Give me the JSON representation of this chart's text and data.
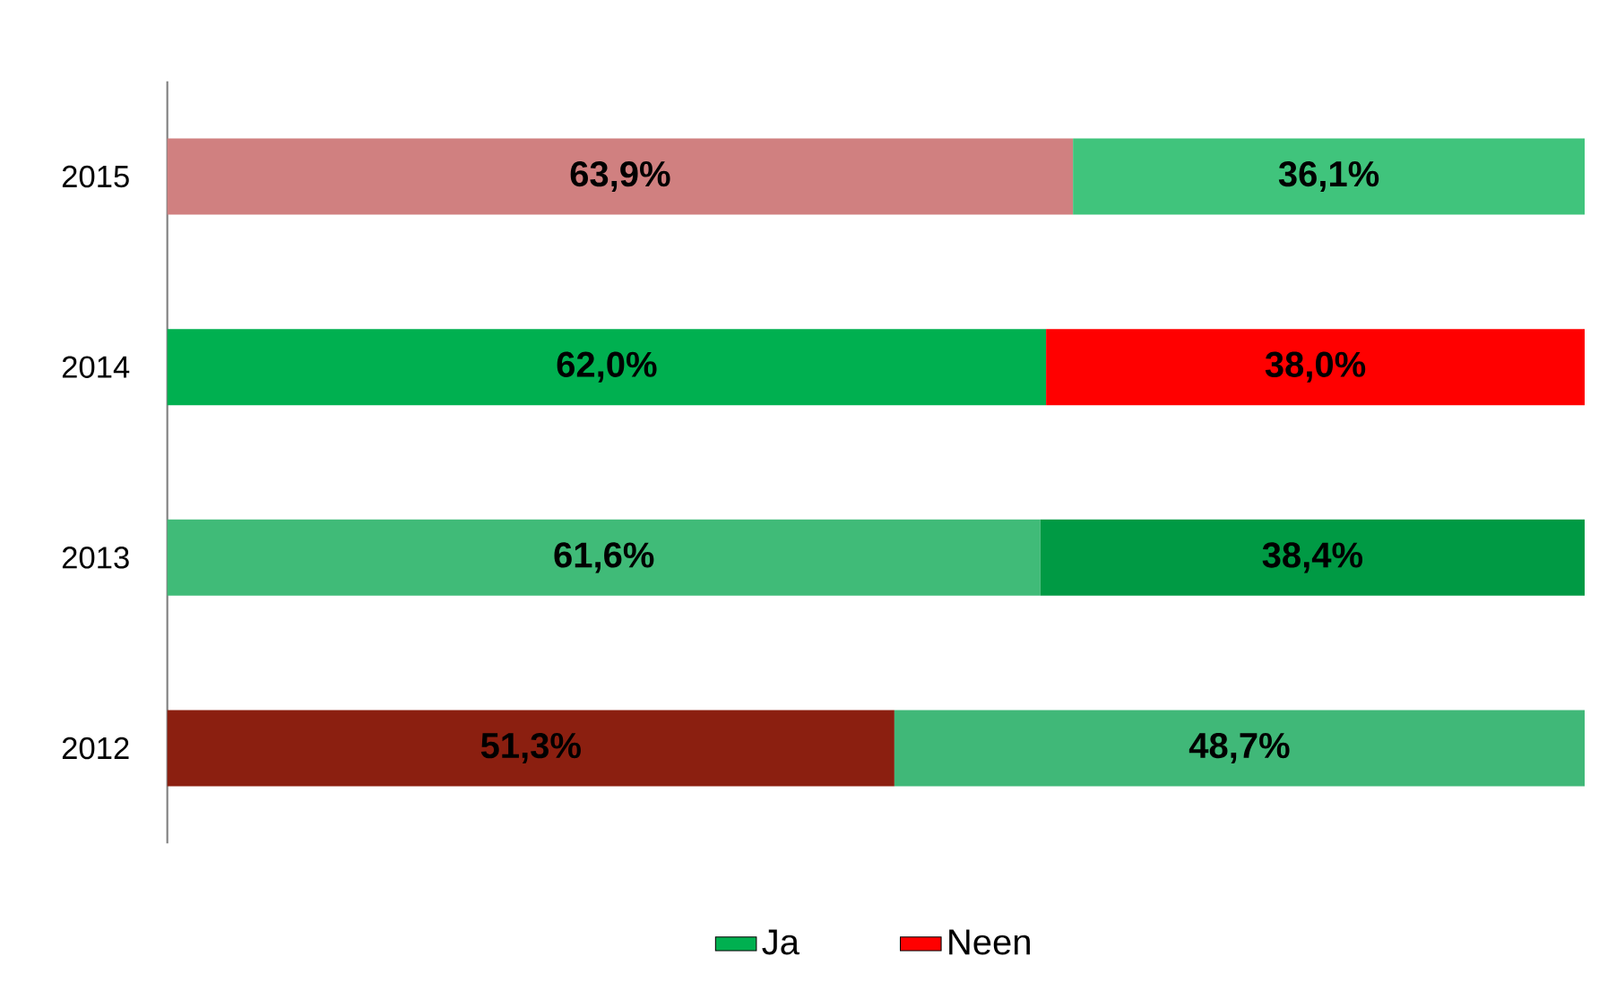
{
  "chart_data": {
    "type": "bar",
    "orientation": "horizontal",
    "stacked": true,
    "legend": "bottom",
    "categories": [
      "2015",
      "2014",
      "2013",
      "2012"
    ],
    "series": [
      {
        "name": "Ja",
        "color": "#00b050",
        "colors": [
          "#d08080",
          "#00b050",
          "#40bb78",
          "#8b1f10"
        ],
        "values": [
          63.9,
          62.0,
          61.6,
          51.3
        ],
        "value_labels": [
          "63,9%",
          "62,0%",
          "61,6%",
          "51,3%"
        ]
      },
      {
        "name": "Neen",
        "color": "#ff0000",
        "colors": [
          "#40c47c",
          "#ff0000",
          "#009a44",
          "#40b878"
        ],
        "values": [
          36.1,
          38.0,
          38.4,
          48.7
        ],
        "value_labels": [
          "36,1%",
          "38,0%",
          "38,4%",
          "48,7%"
        ]
      }
    ]
  }
}
